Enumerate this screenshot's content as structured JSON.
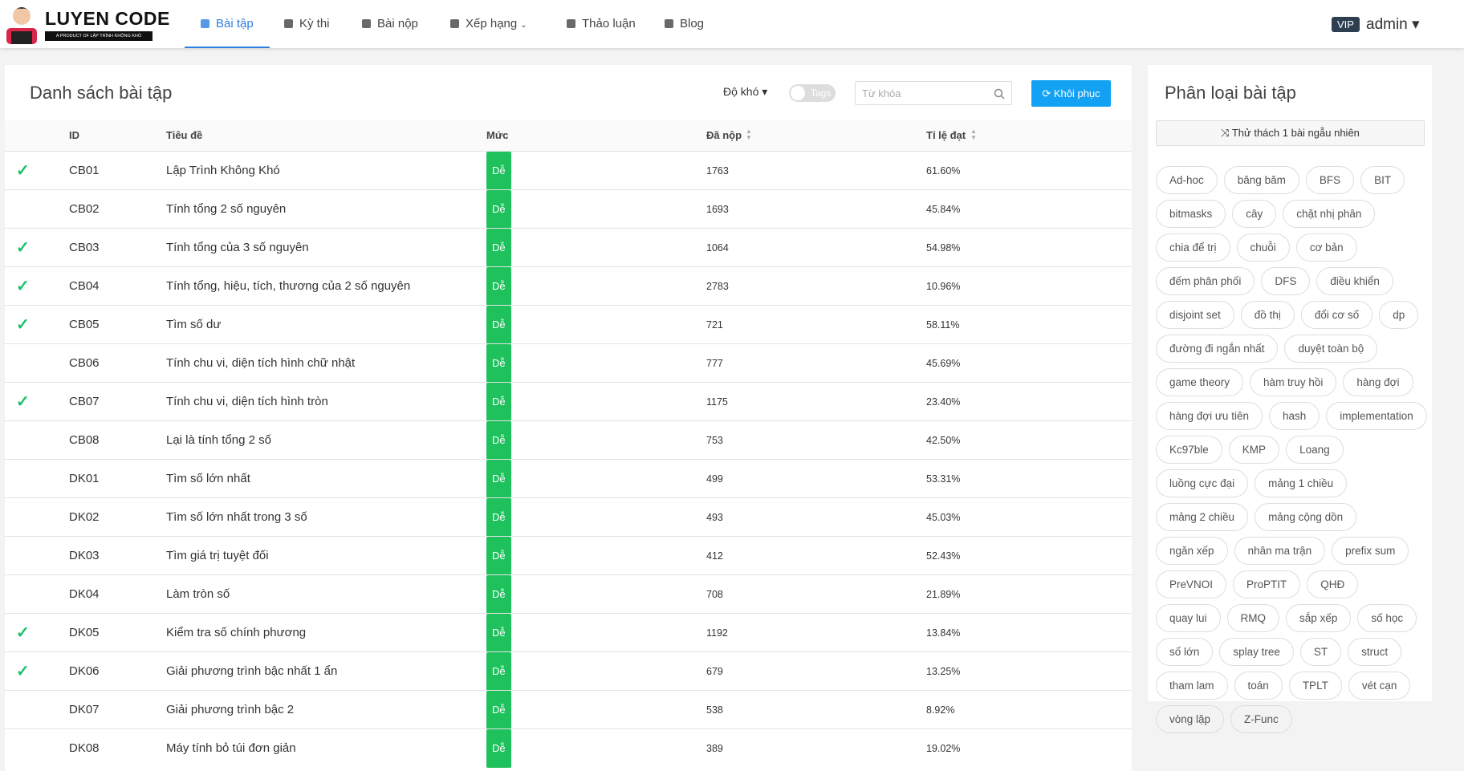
{
  "logo": {
    "title": "LUYEN CODE",
    "subtitle": "A PRODUCT OF LẬP TRÌNH KHÔNG KHÓ"
  },
  "nav": {
    "items": [
      "Bài tập",
      "Kỳ thi",
      "Bài nộp",
      "Xếp hạng",
      "Thảo luận",
      "Blog"
    ],
    "active": 0,
    "badge": "VIP",
    "user": "admin"
  },
  "problems": {
    "title": "Danh sách bài tập",
    "difficulty": "Độ khó",
    "tags_toggle": "Tags",
    "search_placeholder": "Từ khóa",
    "reset": "Khôi phục",
    "columns": [
      "ID",
      "Tiêu đề",
      "Mức",
      "Đã nộp",
      "Tỉ lệ đạt"
    ],
    "rows": [
      {
        "solved": true,
        "id": "CB01",
        "title": "Lập Trình Không Khó",
        "level": "Dễ",
        "submitted": "1763",
        "rate": "61.60%"
      },
      {
        "solved": false,
        "id": "CB02",
        "title": "Tính tổng 2 số nguyên",
        "level": "Dễ",
        "submitted": "1693",
        "rate": "45.84%"
      },
      {
        "solved": true,
        "id": "CB03",
        "title": "Tính tổng của 3 số nguyên",
        "level": "Dễ",
        "submitted": "1064",
        "rate": "54.98%"
      },
      {
        "solved": true,
        "id": "CB04",
        "title": "Tính tổng, hiệu, tích, thương của 2 số nguyên",
        "level": "Dễ",
        "submitted": "2783",
        "rate": "10.96%"
      },
      {
        "solved": true,
        "id": "CB05",
        "title": "Tìm số dư",
        "level": "Dễ",
        "submitted": "721",
        "rate": "58.11%"
      },
      {
        "solved": false,
        "id": "CB06",
        "title": "Tính chu vi, diện tích hình chữ nhật",
        "level": "Dễ",
        "submitted": "777",
        "rate": "45.69%"
      },
      {
        "solved": true,
        "id": "CB07",
        "title": "Tính chu vi, diện tích hình tròn",
        "level": "Dễ",
        "submitted": "1175",
        "rate": "23.40%"
      },
      {
        "solved": false,
        "id": "CB08",
        "title": "Lại là tính tổng 2 số",
        "level": "Dễ",
        "submitted": "753",
        "rate": "42.50%"
      },
      {
        "solved": false,
        "id": "DK01",
        "title": "Tìm số lớn nhất",
        "level": "Dễ",
        "submitted": "499",
        "rate": "53.31%"
      },
      {
        "solved": false,
        "id": "DK02",
        "title": "Tìm số lớn nhất trong 3 số",
        "level": "Dễ",
        "submitted": "493",
        "rate": "45.03%"
      },
      {
        "solved": false,
        "id": "DK03",
        "title": "Tìm giá trị tuyệt đối",
        "level": "Dễ",
        "submitted": "412",
        "rate": "52.43%"
      },
      {
        "solved": false,
        "id": "DK04",
        "title": "Làm tròn số",
        "level": "Dễ",
        "submitted": "708",
        "rate": "21.89%"
      },
      {
        "solved": true,
        "id": "DK05",
        "title": "Kiểm tra số chính phương",
        "level": "Dễ",
        "submitted": "1192",
        "rate": "13.84%"
      },
      {
        "solved": true,
        "id": "DK06",
        "title": "Giải phương trình bậc nhất 1 ẩn",
        "level": "Dễ",
        "submitted": "679",
        "rate": "13.25%"
      },
      {
        "solved": false,
        "id": "DK07",
        "title": "Giải phương trình bậc 2",
        "level": "Dễ",
        "submitted": "538",
        "rate": "8.92%"
      },
      {
        "solved": false,
        "id": "DK08",
        "title": "Máy tính bỏ túi đơn giản",
        "level": "Dễ",
        "submitted": "389",
        "rate": "19.02%"
      }
    ]
  },
  "sidebar": {
    "title": "Phân loại bài tập",
    "random": "Thử thách 1 bài ngẫu nhiên",
    "tags": [
      "Ad-hoc",
      "băng băm",
      "BFS",
      "BIT",
      "bitmasks",
      "cây",
      "chặt nhị phân",
      "chia để trị",
      "chuỗi",
      "cơ bản",
      "đếm phân phối",
      "DFS",
      "điều khiển",
      "disjoint set",
      "đồ thị",
      "đổi cơ số",
      "dp",
      "đường đi ngắn nhất",
      "duyệt toàn bộ",
      "game theory",
      "hàm truy hồi",
      "hàng đợi",
      "hàng đợi ưu tiên",
      "hash",
      "implementation",
      "Kc97ble",
      "KMP",
      "Loang",
      "luồng cực đại",
      "mảng 1 chiều",
      "mảng 2 chiều",
      "mảng cộng dồn",
      "ngăn xếp",
      "nhân ma trận",
      "prefix sum",
      "PreVNOI",
      "ProPTIT",
      "QHĐ",
      "quay lui",
      "RMQ",
      "sắp xếp",
      "số học",
      "số lớn",
      "splay tree",
      "ST",
      "struct",
      "tham lam",
      "toán",
      "TPLT",
      "vét cạn",
      "vòng lặp",
      "Z-Func"
    ]
  }
}
